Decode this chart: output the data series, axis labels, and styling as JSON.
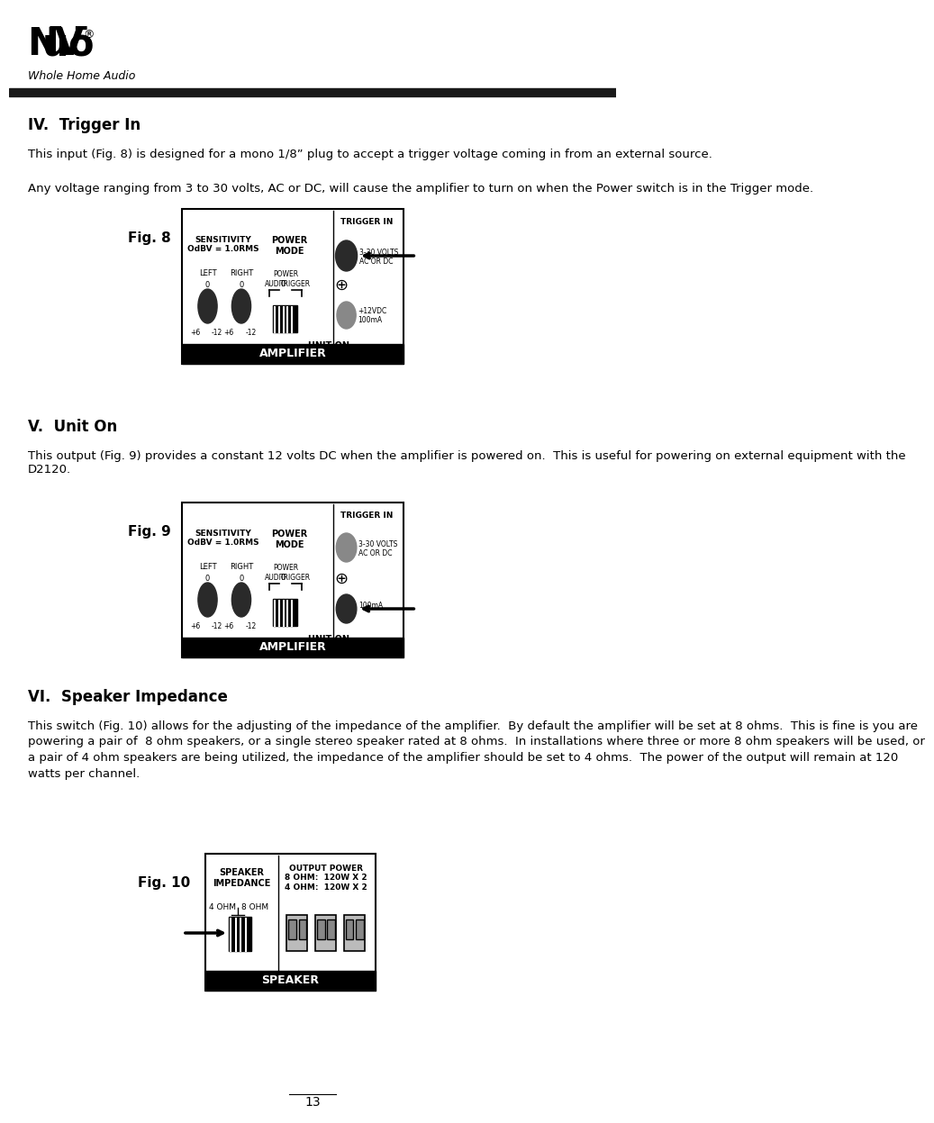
{
  "page_num": "13",
  "bg_color": "#ffffff",
  "logo_subtitle": "Whole Home Audio",
  "header_bar_color": "#1a1a1a",
  "section_iv_title": "IV.  Trigger In",
  "section_iv_p1": "This input (Fig. 8) is designed for a mono 1/8” plug to accept a trigger voltage coming in from an external source.",
  "section_iv_p2": "Any voltage ranging from 3 to 30 volts, AC or DC, will cause the amplifier to turn on when the Power switch is in the Trigger mode.",
  "fig8_label": "Fig. 8",
  "section_v_title": "V.  Unit On",
  "section_v_p1": "This output (Fig. 9) provides a constant 12 volts DC when the amplifier is powered on.  This is useful for powering on external equipment with the\nD2120.",
  "fig9_label": "Fig. 9",
  "section_vi_title": "VI.  Speaker Impedance",
  "section_vi_p1": "This switch (Fig. 10) allows for the adjusting of the impedance of the amplifier.  By default the amplifier will be set at 8 ohms.  This is fine is you are\npowering a pair of  8 ohm speakers, or a single stereo speaker rated at 8 ohms.  In installations where three or more 8 ohm speakers will be used, or\na pair of 4 ohm speakers are being utilized, the impedance of the amplifier should be set to 4 ohms.  The power of the output will remain at 120\nwatts per channel.",
  "fig10_label": "Fig. 10",
  "amplifier_label": "AMPLIFIER",
  "speaker_label": "SPEAKER",
  "trigger_in_label": "TRIGGER IN",
  "sensitivity_label": "SENSITIVITY\nOdBV = 1.0RMS",
  "power_mode_label": "POWER\nMODE",
  "left_label": "LEFT",
  "right_label": "RIGHT",
  "power_label": "POWER",
  "audio_label": "AUDIO",
  "trigger_label": "TRIGGER",
  "unit_on_label": "UNIT ON",
  "volts_label": "3-30 VOLTS\nAC OR DC",
  "unit_on_spec": "+12VDC\n100mA",
  "speaker_impedance_label": "SPEAKER\nIMPEDANCE",
  "output_power_label": "OUTPUT POWER\n8 OHM:  120W X 2\n4 OHM:  120W X 2",
  "ohm_4_label": "4 OHM",
  "ohm_8_label": "8 OHM",
  "knob_color": "#2a2a2a",
  "gray_color": "#888888"
}
